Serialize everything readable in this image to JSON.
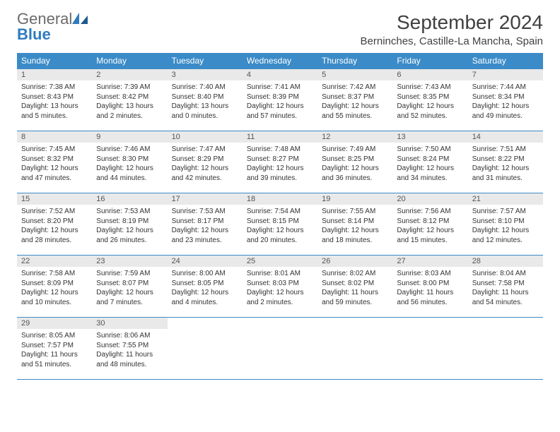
{
  "logo": {
    "general": "General",
    "blue": "Blue",
    "icon_color": "#2f7bbf"
  },
  "title": "September 2024",
  "location": "Berninches, Castille-La Mancha, Spain",
  "colors": {
    "header_bg": "#3b8bc8",
    "header_text": "#ffffff",
    "daynum_bg": "#e9e9e9",
    "border": "#3b8bc8",
    "body_text": "#333333",
    "title_text": "#404040"
  },
  "weekdays": [
    "Sunday",
    "Monday",
    "Tuesday",
    "Wednesday",
    "Thursday",
    "Friday",
    "Saturday"
  ],
  "weeks": [
    [
      {
        "day": "1",
        "sunrise": "Sunrise: 7:38 AM",
        "sunset": "Sunset: 8:43 PM",
        "daylight": "Daylight: 13 hours and 5 minutes."
      },
      {
        "day": "2",
        "sunrise": "Sunrise: 7:39 AM",
        "sunset": "Sunset: 8:42 PM",
        "daylight": "Daylight: 13 hours and 2 minutes."
      },
      {
        "day": "3",
        "sunrise": "Sunrise: 7:40 AM",
        "sunset": "Sunset: 8:40 PM",
        "daylight": "Daylight: 13 hours and 0 minutes."
      },
      {
        "day": "4",
        "sunrise": "Sunrise: 7:41 AM",
        "sunset": "Sunset: 8:39 PM",
        "daylight": "Daylight: 12 hours and 57 minutes."
      },
      {
        "day": "5",
        "sunrise": "Sunrise: 7:42 AM",
        "sunset": "Sunset: 8:37 PM",
        "daylight": "Daylight: 12 hours and 55 minutes."
      },
      {
        "day": "6",
        "sunrise": "Sunrise: 7:43 AM",
        "sunset": "Sunset: 8:35 PM",
        "daylight": "Daylight: 12 hours and 52 minutes."
      },
      {
        "day": "7",
        "sunrise": "Sunrise: 7:44 AM",
        "sunset": "Sunset: 8:34 PM",
        "daylight": "Daylight: 12 hours and 49 minutes."
      }
    ],
    [
      {
        "day": "8",
        "sunrise": "Sunrise: 7:45 AM",
        "sunset": "Sunset: 8:32 PM",
        "daylight": "Daylight: 12 hours and 47 minutes."
      },
      {
        "day": "9",
        "sunrise": "Sunrise: 7:46 AM",
        "sunset": "Sunset: 8:30 PM",
        "daylight": "Daylight: 12 hours and 44 minutes."
      },
      {
        "day": "10",
        "sunrise": "Sunrise: 7:47 AM",
        "sunset": "Sunset: 8:29 PM",
        "daylight": "Daylight: 12 hours and 42 minutes."
      },
      {
        "day": "11",
        "sunrise": "Sunrise: 7:48 AM",
        "sunset": "Sunset: 8:27 PM",
        "daylight": "Daylight: 12 hours and 39 minutes."
      },
      {
        "day": "12",
        "sunrise": "Sunrise: 7:49 AM",
        "sunset": "Sunset: 8:25 PM",
        "daylight": "Daylight: 12 hours and 36 minutes."
      },
      {
        "day": "13",
        "sunrise": "Sunrise: 7:50 AM",
        "sunset": "Sunset: 8:24 PM",
        "daylight": "Daylight: 12 hours and 34 minutes."
      },
      {
        "day": "14",
        "sunrise": "Sunrise: 7:51 AM",
        "sunset": "Sunset: 8:22 PM",
        "daylight": "Daylight: 12 hours and 31 minutes."
      }
    ],
    [
      {
        "day": "15",
        "sunrise": "Sunrise: 7:52 AM",
        "sunset": "Sunset: 8:20 PM",
        "daylight": "Daylight: 12 hours and 28 minutes."
      },
      {
        "day": "16",
        "sunrise": "Sunrise: 7:53 AM",
        "sunset": "Sunset: 8:19 PM",
        "daylight": "Daylight: 12 hours and 26 minutes."
      },
      {
        "day": "17",
        "sunrise": "Sunrise: 7:53 AM",
        "sunset": "Sunset: 8:17 PM",
        "daylight": "Daylight: 12 hours and 23 minutes."
      },
      {
        "day": "18",
        "sunrise": "Sunrise: 7:54 AM",
        "sunset": "Sunset: 8:15 PM",
        "daylight": "Daylight: 12 hours and 20 minutes."
      },
      {
        "day": "19",
        "sunrise": "Sunrise: 7:55 AM",
        "sunset": "Sunset: 8:14 PM",
        "daylight": "Daylight: 12 hours and 18 minutes."
      },
      {
        "day": "20",
        "sunrise": "Sunrise: 7:56 AM",
        "sunset": "Sunset: 8:12 PM",
        "daylight": "Daylight: 12 hours and 15 minutes."
      },
      {
        "day": "21",
        "sunrise": "Sunrise: 7:57 AM",
        "sunset": "Sunset: 8:10 PM",
        "daylight": "Daylight: 12 hours and 12 minutes."
      }
    ],
    [
      {
        "day": "22",
        "sunrise": "Sunrise: 7:58 AM",
        "sunset": "Sunset: 8:09 PM",
        "daylight": "Daylight: 12 hours and 10 minutes."
      },
      {
        "day": "23",
        "sunrise": "Sunrise: 7:59 AM",
        "sunset": "Sunset: 8:07 PM",
        "daylight": "Daylight: 12 hours and 7 minutes."
      },
      {
        "day": "24",
        "sunrise": "Sunrise: 8:00 AM",
        "sunset": "Sunset: 8:05 PM",
        "daylight": "Daylight: 12 hours and 4 minutes."
      },
      {
        "day": "25",
        "sunrise": "Sunrise: 8:01 AM",
        "sunset": "Sunset: 8:03 PM",
        "daylight": "Daylight: 12 hours and 2 minutes."
      },
      {
        "day": "26",
        "sunrise": "Sunrise: 8:02 AM",
        "sunset": "Sunset: 8:02 PM",
        "daylight": "Daylight: 11 hours and 59 minutes."
      },
      {
        "day": "27",
        "sunrise": "Sunrise: 8:03 AM",
        "sunset": "Sunset: 8:00 PM",
        "daylight": "Daylight: 11 hours and 56 minutes."
      },
      {
        "day": "28",
        "sunrise": "Sunrise: 8:04 AM",
        "sunset": "Sunset: 7:58 PM",
        "daylight": "Daylight: 11 hours and 54 minutes."
      }
    ],
    [
      {
        "day": "29",
        "sunrise": "Sunrise: 8:05 AM",
        "sunset": "Sunset: 7:57 PM",
        "daylight": "Daylight: 11 hours and 51 minutes."
      },
      {
        "day": "30",
        "sunrise": "Sunrise: 8:06 AM",
        "sunset": "Sunset: 7:55 PM",
        "daylight": "Daylight: 11 hours and 48 minutes."
      },
      null,
      null,
      null,
      null,
      null
    ]
  ]
}
